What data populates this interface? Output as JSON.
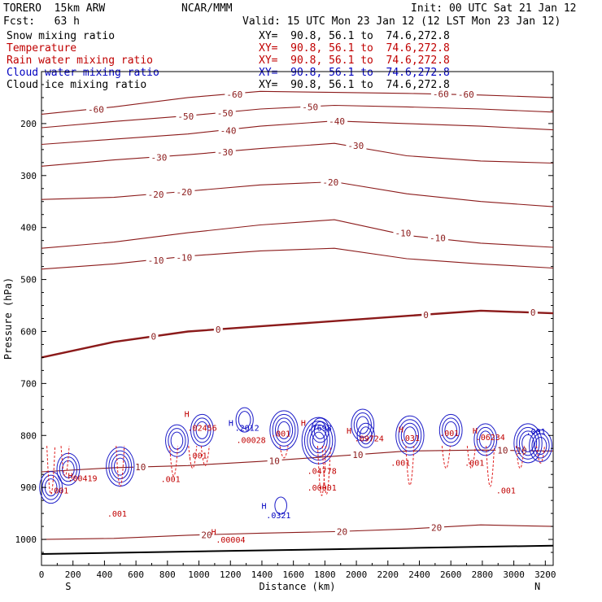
{
  "header": {
    "model": "TORERO  15km ARW",
    "center": "NCAR/MMM",
    "init": "Init: 00 UTC Sat 21 Jan 12",
    "fcst": "Fcst:   63 h",
    "valid": "Valid: 15 UTC Mon 23 Jan 12 (12 LST Mon 23 Jan 12)"
  },
  "legend": [
    {
      "name": "Snow mixing ratio",
      "xy": "XY=  90.8, 56.1 to  74.6,272.8",
      "color": "#000000"
    },
    {
      "name": "Temperature",
      "xy": "XY=  90.8, 56.1 to  74.6,272.8",
      "color": "#c00000"
    },
    {
      "name": "Rain water mixing ratio",
      "xy": "XY=  90.8, 56.1 to  74.6,272.8",
      "color": "#c00000"
    },
    {
      "name": "Cloud water mixing ratio",
      "xy": "XY=  90.8, 56.1 to  74.6,272.8",
      "color": "#0000c0"
    },
    {
      "name": "Cloud ice mixing ratio",
      "xy": "XY=  90.8, 56.1 to  74.6,272.8",
      "color": "#000000"
    }
  ],
  "chart_data": {
    "type": "cross-section",
    "xlabel": "Distance (km)",
    "ylabel": "Pressure (hPa)",
    "xlim": [
      0,
      3250
    ],
    "ylim": [
      1050,
      100
    ],
    "x_ticks": [
      0,
      200,
      400,
      600,
      800,
      1000,
      1200,
      1400,
      1600,
      1800,
      2000,
      2200,
      2400,
      2600,
      2800,
      3000,
      3200
    ],
    "y_ticks": [
      200,
      300,
      400,
      500,
      600,
      700,
      800,
      900,
      1000
    ],
    "x_endpoints": [
      {
        "label": "S",
        "x": 170
      },
      {
        "label": "N",
        "x": 3150
      }
    ],
    "temperature_isotherms": [
      {
        "value": -60,
        "p": [
          182,
          168,
          150,
          138,
          140,
          142,
          145,
          150
        ],
        "labels": [
          {
            "text": "-60",
            "x": 300
          },
          {
            "text": "-60",
            "x": 1180
          },
          {
            "text": "-60",
            "x": 2490
          },
          {
            "text": "-60",
            "x": 2650
          }
        ]
      },
      {
        "value": -50,
        "p": [
          208,
          196,
          185,
          172,
          165,
          168,
          172,
          178
        ],
        "labels": [
          {
            "text": "-50",
            "x": 870
          },
          {
            "text": "-50",
            "x": 1120
          },
          {
            "text": "-50",
            "x": 1660
          }
        ]
      },
      {
        "value": -40,
        "p": [
          240,
          230,
          220,
          205,
          195,
          200,
          205,
          212
        ],
        "labels": [
          {
            "text": "-40",
            "x": 1140
          },
          {
            "text": "-40",
            "x": 1830
          }
        ]
      },
      {
        "value": -30,
        "p": [
          282,
          270,
          260,
          248,
          238,
          262,
          272,
          276
        ],
        "labels": [
          {
            "text": "-30",
            "x": 700
          },
          {
            "text": "-30",
            "x": 1120
          },
          {
            "text": "-30",
            "x": 1950
          }
        ]
      },
      {
        "value": -20,
        "p": [
          346,
          342,
          330,
          318,
          312,
          335,
          350,
          360
        ],
        "labels": [
          {
            "text": "-20",
            "x": 680
          },
          {
            "text": "-20",
            "x": 860
          },
          {
            "text": "-20",
            "x": 1790
          }
        ]
      },
      {
        "value": -10,
        "p": [
          440,
          428,
          410,
          395,
          385,
          415,
          430,
          438
        ],
        "labels": [
          {
            "text": "-10",
            "x": 2250
          },
          {
            "text": "-10",
            "x": 2470
          }
        ]
      },
      {
        "value": -10,
        "p": [
          480,
          470,
          455,
          445,
          440,
          460,
          470,
          478
        ],
        "labels": [
          {
            "text": "-10",
            "x": 680
          },
          {
            "text": "-10",
            "x": 860
          }
        ]
      },
      {
        "value": 0,
        "p": [
          650,
          620,
          600,
          590,
          580,
          570,
          560,
          565
        ],
        "labels": [
          {
            "text": "0",
            "x": 700
          },
          {
            "text": "0",
            "x": 1110
          },
          {
            "text": "0",
            "x": 2430
          },
          {
            "text": "0",
            "x": 3110
          }
        ]
      },
      {
        "value": 10,
        "p": [
          870,
          862,
          858,
          850,
          840,
          830,
          828,
          830
        ],
        "labels": [
          {
            "text": "10",
            "x": 600
          },
          {
            "text": "10",
            "x": 1450
          },
          {
            "text": "10",
            "x": 1980
          },
          {
            "text": "10",
            "x": 2900
          },
          {
            "text": "10",
            "x": 3020
          }
        ]
      },
      {
        "value": 20,
        "p": [
          1000,
          998,
          992,
          988,
          985,
          980,
          972,
          975
        ],
        "labels": [
          {
            "text": "20",
            "x": 1020
          },
          {
            "text": "20",
            "x": 1880
          },
          {
            "text": "20",
            "x": 2480
          }
        ]
      }
    ],
    "contour_labels": [
      {
        "text": "H",
        "x": 240,
        "p": 877,
        "color": "#c00000"
      },
      {
        "text": ".00419",
        "x": 240,
        "p": 882,
        "color": "#c00000"
      },
      {
        "text": ".001",
        "x": 120,
        "p": 905,
        "color": "#c00000"
      },
      {
        "text": ".001",
        "x": 830,
        "p": 883,
        "color": "#c00000"
      },
      {
        "text": ".001",
        "x": 1000,
        "p": 838,
        "color": "#c00000"
      },
      {
        "text": ".001",
        "x": 1530,
        "p": 796,
        "color": "#c00000"
      },
      {
        "text": ".001",
        "x": 2290,
        "p": 852,
        "color": "#c00000"
      },
      {
        "text": ".001",
        "x": 2760,
        "p": 852,
        "color": "#c00000"
      },
      {
        "text": ".001",
        "x": 2960,
        "p": 905,
        "color": "#c00000"
      },
      {
        "text": ".001",
        "x": 490,
        "p": 950,
        "color": "#c00000"
      },
      {
        "text": "H",
        "x": 980,
        "p": 758,
        "color": "#c00000"
      },
      {
        "text": ".02456",
        "x": 1000,
        "p": 785,
        "color": "#c00000"
      },
      {
        "text": "H",
        "x": 1260,
        "p": 775,
        "color": "#0000c0"
      },
      {
        "text": ".2012",
        "x": 1300,
        "p": 785,
        "color": "#0000c0"
      },
      {
        "text": ".00028",
        "x": 1310,
        "p": 808,
        "color": "#c00000"
      },
      {
        "text": "H",
        "x": 1720,
        "p": 775,
        "color": "#c00000"
      },
      {
        "text": ".7698",
        "x": 1760,
        "p": 785,
        "color": "#0000c0"
      },
      {
        "text": ".04778",
        "x": 1760,
        "p": 868,
        "color": "#c00000"
      },
      {
        "text": ".00001",
        "x": 1760,
        "p": 900,
        "color": "#c00000"
      },
      {
        "text": "H",
        "x": 2010,
        "p": 790,
        "color": "#c00000"
      },
      {
        "text": ".09724",
        "x": 2060,
        "p": 805,
        "color": "#c00000"
      },
      {
        "text": "H",
        "x": 2340,
        "p": 788,
        "color": "#c00000"
      },
      {
        "text": ".031",
        "x": 2350,
        "p": 804,
        "color": "#c00000"
      },
      {
        "text": ".001",
        "x": 2600,
        "p": 795,
        "color": "#c00000"
      },
      {
        "text": "H",
        "x": 2810,
        "p": 790,
        "color": "#c00000"
      },
      {
        "text": ".06234",
        "x": 2830,
        "p": 803,
        "color": "#c00000"
      },
      {
        "text": ".001",
        "x": 3150,
        "p": 792,
        "color": "#0000c0"
      },
      {
        "text": "H",
        "x": 1470,
        "p": 935,
        "color": "#0000c0"
      },
      {
        "text": ".0321",
        "x": 1500,
        "p": 953,
        "color": "#0000c0"
      },
      {
        "text": "H",
        "x": 1150,
        "p": 985,
        "color": "#c00000"
      },
      {
        "text": ".00004",
        "x": 1180,
        "p": 1000,
        "color": "#c00000"
      }
    ]
  }
}
